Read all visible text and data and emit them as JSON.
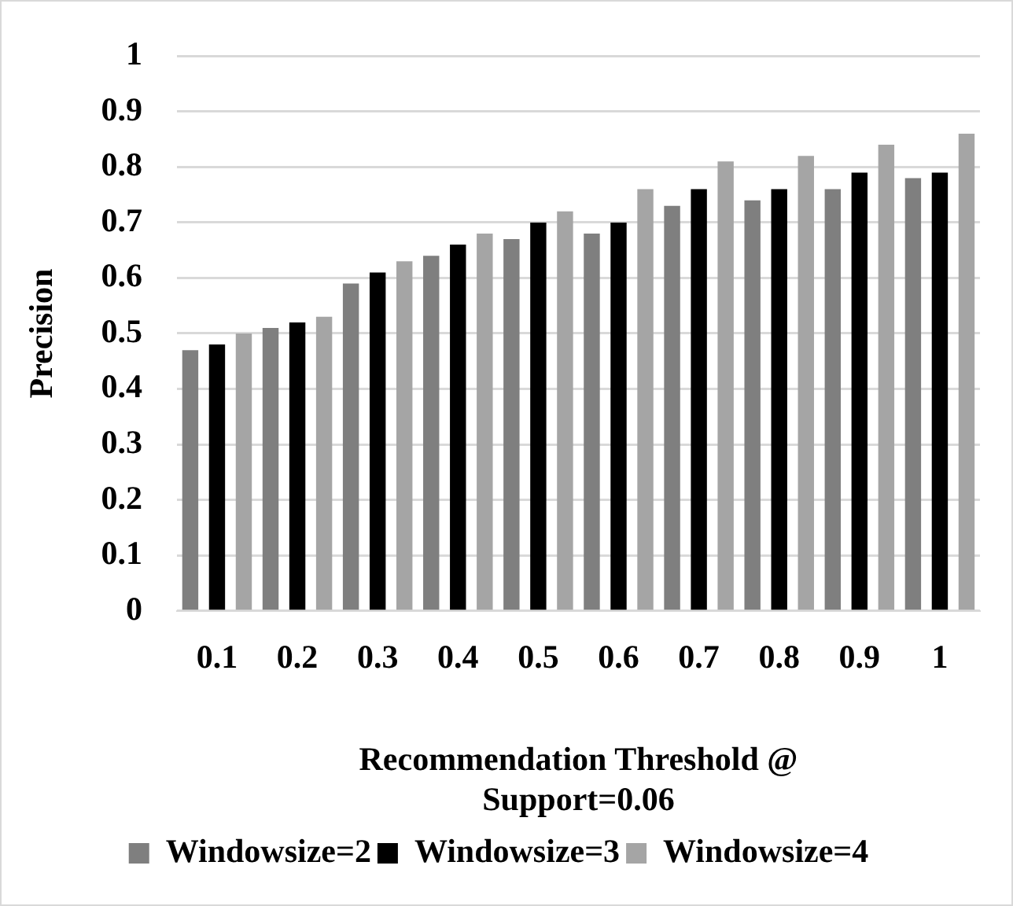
{
  "chart_data": {
    "type": "bar",
    "xlabel": "Recommendation Threshold @ Support=0.06",
    "ylabel": "Precision",
    "categories": [
      "0.1",
      "0.2",
      "0.3",
      "0.4",
      "0.5",
      "0.6",
      "0.7",
      "0.8",
      "0.9",
      "1"
    ],
    "series": [
      {
        "name": "Windowsize=2",
        "color": "#7f7f7f",
        "values": [
          0.47,
          0.51,
          0.59,
          0.64,
          0.67,
          0.68,
          0.73,
          0.74,
          0.76,
          0.78
        ]
      },
      {
        "name": "Windowsize=3",
        "color": "#000000",
        "values": [
          0.48,
          0.52,
          0.61,
          0.66,
          0.7,
          0.7,
          0.76,
          0.76,
          0.79,
          0.79
        ]
      },
      {
        "name": "Windowsize=4",
        "color": "#a5a5a5",
        "values": [
          0.5,
          0.53,
          0.63,
          0.68,
          0.72,
          0.76,
          0.81,
          0.82,
          0.84,
          0.86
        ]
      }
    ],
    "ylim": [
      0,
      1
    ],
    "yticks": [
      0,
      0.1,
      0.2,
      0.3,
      0.4,
      0.5,
      0.6,
      0.7,
      0.8,
      0.9,
      1
    ],
    "grid": "y",
    "legend": "bottom"
  }
}
